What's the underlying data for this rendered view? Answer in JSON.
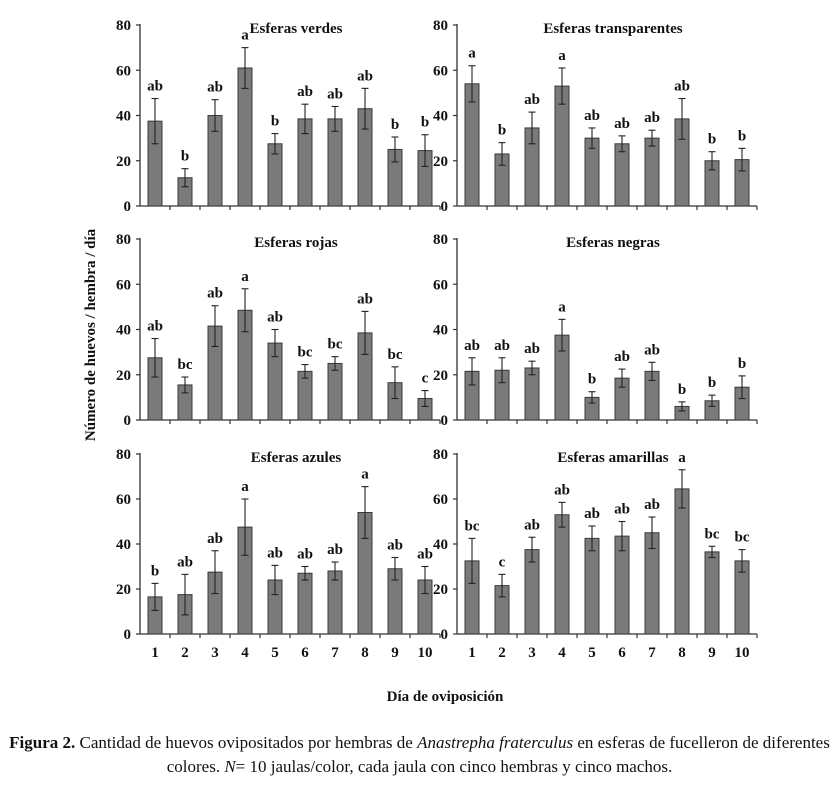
{
  "figure": {
    "y_axis_label": "Número de huevos / hembra / día",
    "x_axis_label": "Día de oviposición"
  },
  "caption": {
    "label": "Figura 2.",
    "text_before_species": "Cantidad de huevos ovipositados por hembras de",
    "species": "Anastrepha fraterculus",
    "text_after_species": "en esferas de fucelleron de diferentes colores.",
    "n_symbol": "N",
    "n_text": "= 10 jaulas/color, cada jaula con cinco hembras y cinco machos."
  },
  "chart_data": [
    {
      "type": "bar",
      "title": "Esferas verdes",
      "categories": [
        "1",
        "2",
        "3",
        "4",
        "5",
        "6",
        "7",
        "8",
        "9",
        "10"
      ],
      "values": [
        37.5,
        12.5,
        40,
        61,
        27.5,
        38.5,
        38.5,
        43,
        25,
        24.5
      ],
      "errors": [
        10,
        4,
        7,
        9,
        4.5,
        6.5,
        5.5,
        9,
        5.5,
        7
      ],
      "letters": [
        "ab",
        "b",
        "ab",
        "a",
        "b",
        "ab",
        "ab",
        "ab",
        "b",
        "b"
      ],
      "yticks": [
        "0",
        "20",
        "40",
        "60",
        "80"
      ],
      "ylim": [
        0,
        80
      ]
    },
    {
      "type": "bar",
      "title": "Esferas transparentes",
      "categories": [
        "1",
        "2",
        "3",
        "4",
        "5",
        "6",
        "7",
        "8",
        "9",
        "10"
      ],
      "values": [
        54,
        23,
        34.5,
        53,
        30,
        27.5,
        30,
        38.5,
        20,
        20.5
      ],
      "errors": [
        8,
        5,
        7,
        8,
        4.5,
        3.5,
        3.5,
        9,
        4,
        5
      ],
      "letters": [
        "a",
        "b",
        "ab",
        "a",
        "ab",
        "ab",
        "ab",
        "ab",
        "b",
        "b"
      ],
      "yticks": [
        "0",
        "20",
        "40",
        "60",
        "80"
      ],
      "ylim": [
        0,
        80
      ]
    },
    {
      "type": "bar",
      "title": "Esferas rojas",
      "categories": [
        "1",
        "2",
        "3",
        "4",
        "5",
        "6",
        "7",
        "8",
        "9",
        "10"
      ],
      "values": [
        27.5,
        15.5,
        41.5,
        48.5,
        34,
        21.5,
        25,
        38.5,
        16.5,
        9.5
      ],
      "errors": [
        8.5,
        3.5,
        9,
        9.5,
        6,
        3,
        3,
        9.5,
        7,
        3.5
      ],
      "letters": [
        "ab",
        "bc",
        "ab",
        "a",
        "ab",
        "bc",
        "bc",
        "ab",
        "bc",
        "c"
      ],
      "yticks": [
        "0",
        "20",
        "40",
        "60",
        "80"
      ],
      "ylim": [
        0,
        80
      ]
    },
    {
      "type": "bar",
      "title": "Esferas negras",
      "categories": [
        "1",
        "2",
        "3",
        "4",
        "5",
        "6",
        "7",
        "8",
        "9",
        "10"
      ],
      "values": [
        21.5,
        22,
        23,
        37.5,
        10,
        18.5,
        21.5,
        6,
        8.5,
        14.5
      ],
      "errors": [
        6,
        5.5,
        3,
        7,
        2.5,
        4,
        4,
        2,
        2.5,
        5
      ],
      "letters": [
        "ab",
        "ab",
        "ab",
        "a",
        "b",
        "ab",
        "ab",
        "b",
        "b",
        "b"
      ],
      "yticks": [
        "0",
        "20",
        "40",
        "60",
        "80"
      ],
      "ylim": [
        0,
        80
      ]
    },
    {
      "type": "bar",
      "title": "Esferas azules",
      "categories": [
        "1",
        "2",
        "3",
        "4",
        "5",
        "6",
        "7",
        "8",
        "9",
        "10"
      ],
      "values": [
        16.5,
        17.5,
        27.5,
        47.5,
        24,
        27,
        28,
        54,
        29,
        24
      ],
      "errors": [
        6,
        9,
        9.5,
        12.5,
        6.5,
        3,
        4,
        11.5,
        5,
        6
      ],
      "letters": [
        "b",
        "ab",
        "ab",
        "a",
        "ab",
        "ab",
        "ab",
        "a",
        "ab",
        "ab"
      ],
      "yticks": [
        "0",
        "20",
        "40",
        "60",
        "80"
      ],
      "ylim": [
        0,
        80
      ]
    },
    {
      "type": "bar",
      "title": "Esferas amarillas",
      "categories": [
        "1",
        "2",
        "3",
        "4",
        "5",
        "6",
        "7",
        "8",
        "9",
        "10"
      ],
      "values": [
        32.5,
        21.5,
        37.5,
        53,
        42.5,
        43.5,
        45,
        64.5,
        36.5,
        32.5
      ],
      "errors": [
        10,
        5,
        5.5,
        5.5,
        5.5,
        6.5,
        7,
        8.5,
        2.5,
        5
      ],
      "letters": [
        "bc",
        "c",
        "ab",
        "ab",
        "ab",
        "ab",
        "ab",
        "a",
        "bc",
        "bc"
      ],
      "yticks": [
        "0",
        "20",
        "40",
        "60",
        "80"
      ],
      "ylim": [
        0,
        80
      ]
    }
  ]
}
